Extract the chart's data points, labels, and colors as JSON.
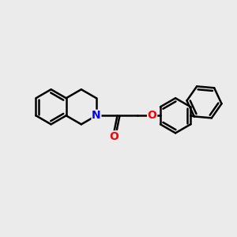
{
  "background_color": "#ebebeb",
  "bond_color": "#000000",
  "bond_width": 1.8,
  "N_color": "#0000ff",
  "O_color": "#ff0000",
  "font_size": 10,
  "fig_size": [
    3.0,
    3.0
  ],
  "dpi": 100,
  "xlim": [
    0,
    10
  ],
  "ylim": [
    0,
    10
  ]
}
